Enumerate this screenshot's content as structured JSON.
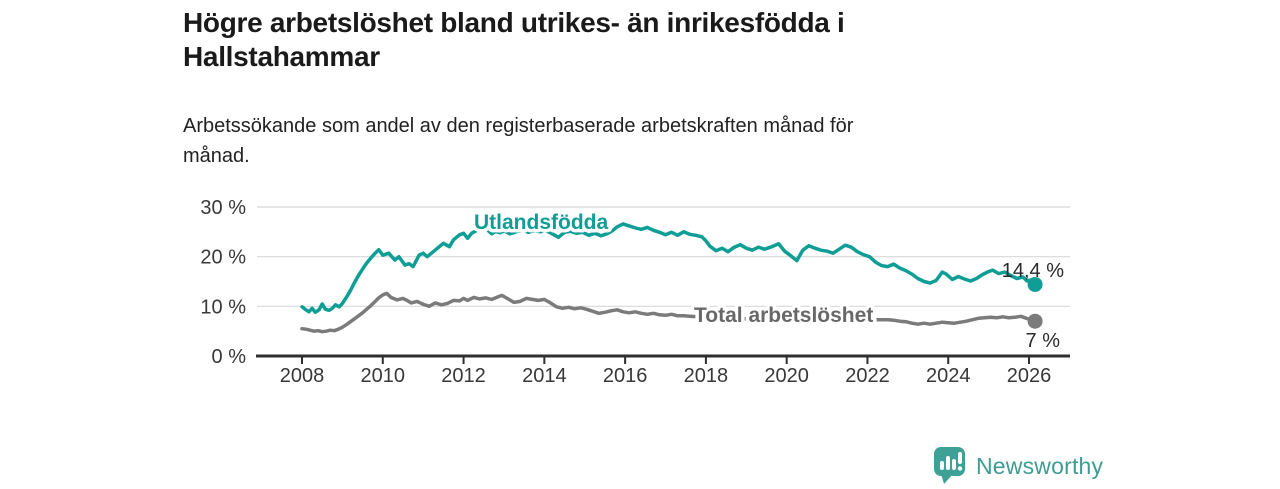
{
  "header": {
    "title_lines": [
      "Högre arbetslöshet bland utrikes- än inrikesfödda i",
      "Hallstahammar"
    ],
    "subtitle_lines": [
      "Arbetssökande som andel av den registerbaserade arbetskraften månad för",
      "månad."
    ]
  },
  "footer": {
    "brand": "Newsworthy",
    "logo_icon": "bar-chart-speech-bubble-icon",
    "brand_color": "#3fa096"
  },
  "chart_data": {
    "type": "line",
    "title": "Högre arbetslöshet bland utrikes- än inrikesfödda i Hallstahammar",
    "subtitle": "Arbetssökande som andel av den registerbaserade arbetskraften månad för månad.",
    "xlabel": "",
    "ylabel": "",
    "xlim": [
      2007,
      2027.2
    ],
    "ylim": [
      0,
      30
    ],
    "grid": "horizontal",
    "legend_position": "inline-labels",
    "x_ticks": [
      {
        "value": 2008,
        "label": "2008"
      },
      {
        "value": 2010,
        "label": "2010"
      },
      {
        "value": 2012,
        "label": "2012"
      },
      {
        "value": 2014,
        "label": "2014"
      },
      {
        "value": 2016,
        "label": "2016"
      },
      {
        "value": 2018,
        "label": "2018"
      },
      {
        "value": 2020,
        "label": "2020"
      },
      {
        "value": 2022,
        "label": "2022"
      },
      {
        "value": 2024,
        "label": "2024"
      },
      {
        "value": 2026,
        "label": "2026"
      }
    ],
    "y_ticks": [
      {
        "value": 0,
        "label": "0 %"
      },
      {
        "value": 10,
        "label": "10 %"
      },
      {
        "value": 20,
        "label": "20 %"
      },
      {
        "value": 30,
        "label": "30 %"
      }
    ],
    "series": [
      {
        "id": "total",
        "name": "Total arbetslöshet",
        "color": "#7b7b7b",
        "label_color": "#686868",
        "end_label": "7 %",
        "end_value": 7.0,
        "points": [
          [
            2008.0,
            5.5
          ],
          [
            2008.1,
            5.4
          ],
          [
            2008.2,
            5.2
          ],
          [
            2008.3,
            5.0
          ],
          [
            2008.4,
            5.1
          ],
          [
            2008.5,
            4.9
          ],
          [
            2008.6,
            5.0
          ],
          [
            2008.7,
            5.2
          ],
          [
            2008.8,
            5.1
          ],
          [
            2008.9,
            5.4
          ],
          [
            2009.0,
            5.8
          ],
          [
            2009.1,
            6.3
          ],
          [
            2009.2,
            6.9
          ],
          [
            2009.3,
            7.5
          ],
          [
            2009.4,
            8.1
          ],
          [
            2009.5,
            8.7
          ],
          [
            2009.6,
            9.4
          ],
          [
            2009.7,
            10.1
          ],
          [
            2009.8,
            10.9
          ],
          [
            2009.9,
            11.7
          ],
          [
            2010.0,
            12.3
          ],
          [
            2010.1,
            12.6
          ],
          [
            2010.2,
            11.8
          ],
          [
            2010.35,
            11.3
          ],
          [
            2010.5,
            11.6
          ],
          [
            2010.6,
            11.2
          ],
          [
            2010.7,
            10.7
          ],
          [
            2010.85,
            11.0
          ],
          [
            2011.0,
            10.4
          ],
          [
            2011.15,
            10.0
          ],
          [
            2011.3,
            10.7
          ],
          [
            2011.45,
            10.3
          ],
          [
            2011.6,
            10.6
          ],
          [
            2011.75,
            11.2
          ],
          [
            2011.9,
            11.1
          ],
          [
            2012.0,
            11.6
          ],
          [
            2012.1,
            11.2
          ],
          [
            2012.25,
            11.8
          ],
          [
            2012.4,
            11.5
          ],
          [
            2012.55,
            11.7
          ],
          [
            2012.7,
            11.4
          ],
          [
            2012.85,
            11.9
          ],
          [
            2012.95,
            12.2
          ],
          [
            2013.1,
            11.5
          ],
          [
            2013.25,
            10.8
          ],
          [
            2013.4,
            11.0
          ],
          [
            2013.55,
            11.6
          ],
          [
            2013.7,
            11.4
          ],
          [
            2013.85,
            11.2
          ],
          [
            2014.0,
            11.4
          ],
          [
            2014.15,
            10.7
          ],
          [
            2014.3,
            9.9
          ],
          [
            2014.45,
            9.6
          ],
          [
            2014.6,
            9.8
          ],
          [
            2014.75,
            9.5
          ],
          [
            2014.9,
            9.7
          ],
          [
            2015.05,
            9.4
          ],
          [
            2015.2,
            9.0
          ],
          [
            2015.35,
            8.6
          ],
          [
            2015.5,
            8.8
          ],
          [
            2015.65,
            9.1
          ],
          [
            2015.8,
            9.3
          ],
          [
            2015.95,
            8.9
          ],
          [
            2016.1,
            8.7
          ],
          [
            2016.25,
            8.9
          ],
          [
            2016.4,
            8.6
          ],
          [
            2016.55,
            8.4
          ],
          [
            2016.7,
            8.6
          ],
          [
            2016.85,
            8.3
          ],
          [
            2017.0,
            8.2
          ],
          [
            2017.15,
            8.4
          ],
          [
            2017.3,
            8.1
          ],
          [
            2017.45,
            8.1
          ],
          [
            2017.6,
            8.0
          ],
          [
            2017.8,
            7.9
          ],
          [
            2018.0,
            7.8
          ],
          [
            2018.25,
            7.7
          ],
          [
            2018.5,
            7.6
          ],
          [
            2018.75,
            7.5
          ],
          [
            2019.0,
            7.5
          ],
          [
            2019.25,
            7.4
          ],
          [
            2019.5,
            7.4
          ],
          [
            2019.75,
            7.5
          ],
          [
            2020.0,
            7.6
          ],
          [
            2020.25,
            7.8
          ],
          [
            2020.5,
            7.7
          ],
          [
            2020.75,
            7.6
          ],
          [
            2021.0,
            7.5
          ],
          [
            2021.25,
            7.4
          ],
          [
            2021.5,
            7.4
          ],
          [
            2021.75,
            7.3
          ],
          [
            2022.0,
            7.3
          ],
          [
            2022.25,
            7.3
          ],
          [
            2022.5,
            7.3
          ],
          [
            2022.65,
            7.2
          ],
          [
            2022.8,
            7.0
          ],
          [
            2022.95,
            6.9
          ],
          [
            2023.1,
            6.6
          ],
          [
            2023.25,
            6.4
          ],
          [
            2023.4,
            6.6
          ],
          [
            2023.55,
            6.4
          ],
          [
            2023.7,
            6.6
          ],
          [
            2023.85,
            6.8
          ],
          [
            2024.0,
            6.7
          ],
          [
            2024.15,
            6.6
          ],
          [
            2024.3,
            6.8
          ],
          [
            2024.45,
            7.0
          ],
          [
            2024.6,
            7.3
          ],
          [
            2024.75,
            7.6
          ],
          [
            2024.9,
            7.7
          ],
          [
            2025.05,
            7.8
          ],
          [
            2025.2,
            7.7
          ],
          [
            2025.35,
            7.9
          ],
          [
            2025.5,
            7.7
          ],
          [
            2025.65,
            7.8
          ],
          [
            2025.8,
            8.0
          ],
          [
            2025.9,
            7.7
          ],
          [
            2026.0,
            7.4
          ],
          [
            2026.15,
            7.0
          ]
        ]
      },
      {
        "id": "utlandsfodda",
        "name": "Utlandsfödda",
        "color": "#0f9e95",
        "label_color": "#0f9e95",
        "end_label": "14,4 %",
        "end_value": 14.4,
        "points": [
          [
            2008.0,
            9.9
          ],
          [
            2008.08,
            9.4
          ],
          [
            2008.17,
            8.9
          ],
          [
            2008.25,
            9.6
          ],
          [
            2008.33,
            8.8
          ],
          [
            2008.42,
            9.3
          ],
          [
            2008.5,
            10.5
          ],
          [
            2008.58,
            9.4
          ],
          [
            2008.67,
            9.2
          ],
          [
            2008.75,
            9.6
          ],
          [
            2008.83,
            10.3
          ],
          [
            2008.92,
            9.9
          ],
          [
            2009.0,
            10.6
          ],
          [
            2009.1,
            11.8
          ],
          [
            2009.2,
            13.2
          ],
          [
            2009.3,
            14.8
          ],
          [
            2009.4,
            16.2
          ],
          [
            2009.5,
            17.5
          ],
          [
            2009.6,
            18.7
          ],
          [
            2009.7,
            19.7
          ],
          [
            2009.8,
            20.6
          ],
          [
            2009.9,
            21.4
          ],
          [
            2010.0,
            20.3
          ],
          [
            2010.15,
            20.7
          ],
          [
            2010.3,
            19.3
          ],
          [
            2010.4,
            20.0
          ],
          [
            2010.55,
            18.3
          ],
          [
            2010.65,
            18.6
          ],
          [
            2010.75,
            18.0
          ],
          [
            2010.9,
            20.3
          ],
          [
            2011.0,
            20.7
          ],
          [
            2011.1,
            20.0
          ],
          [
            2011.25,
            21.0
          ],
          [
            2011.4,
            22.0
          ],
          [
            2011.5,
            22.7
          ],
          [
            2011.65,
            22.0
          ],
          [
            2011.75,
            23.4
          ],
          [
            2011.9,
            24.4
          ],
          [
            2012.0,
            24.7
          ],
          [
            2012.1,
            23.7
          ],
          [
            2012.2,
            24.7
          ],
          [
            2012.35,
            25.4
          ],
          [
            2012.5,
            26.0
          ],
          [
            2012.6,
            25.3
          ],
          [
            2012.7,
            24.6
          ],
          [
            2012.8,
            25.1
          ],
          [
            2012.9,
            24.8
          ],
          [
            2013.0,
            25.2
          ],
          [
            2013.15,
            24.6
          ],
          [
            2013.3,
            25.0
          ],
          [
            2013.45,
            25.4
          ],
          [
            2013.6,
            24.9
          ],
          [
            2013.75,
            25.2
          ],
          [
            2013.9,
            25.0
          ],
          [
            2014.0,
            25.3
          ],
          [
            2014.15,
            24.8
          ],
          [
            2014.35,
            23.9
          ],
          [
            2014.5,
            24.9
          ],
          [
            2014.65,
            25.1
          ],
          [
            2014.8,
            24.7
          ],
          [
            2014.95,
            24.9
          ],
          [
            2015.1,
            24.3
          ],
          [
            2015.25,
            24.7
          ],
          [
            2015.4,
            24.2
          ],
          [
            2015.55,
            24.6
          ],
          [
            2015.7,
            25.3
          ],
          [
            2015.8,
            26.0
          ],
          [
            2015.95,
            26.6
          ],
          [
            2016.1,
            26.2
          ],
          [
            2016.25,
            25.8
          ],
          [
            2016.4,
            25.5
          ],
          [
            2016.55,
            25.9
          ],
          [
            2016.7,
            25.3
          ],
          [
            2016.85,
            24.9
          ],
          [
            2017.0,
            24.4
          ],
          [
            2017.15,
            24.9
          ],
          [
            2017.3,
            24.3
          ],
          [
            2017.45,
            25.0
          ],
          [
            2017.6,
            24.5
          ],
          [
            2017.75,
            24.3
          ],
          [
            2017.9,
            24.0
          ],
          [
            2018.0,
            23.2
          ],
          [
            2018.1,
            22.1
          ],
          [
            2018.25,
            21.2
          ],
          [
            2018.4,
            21.7
          ],
          [
            2018.55,
            21.0
          ],
          [
            2018.7,
            21.9
          ],
          [
            2018.85,
            22.4
          ],
          [
            2019.0,
            21.7
          ],
          [
            2019.15,
            21.3
          ],
          [
            2019.3,
            21.9
          ],
          [
            2019.45,
            21.5
          ],
          [
            2019.6,
            21.9
          ],
          [
            2019.8,
            22.6
          ],
          [
            2019.95,
            21.1
          ],
          [
            2020.1,
            20.2
          ],
          [
            2020.25,
            19.2
          ],
          [
            2020.4,
            21.3
          ],
          [
            2020.55,
            22.2
          ],
          [
            2020.7,
            21.7
          ],
          [
            2020.85,
            21.3
          ],
          [
            2021.0,
            21.1
          ],
          [
            2021.15,
            20.7
          ],
          [
            2021.3,
            21.5
          ],
          [
            2021.45,
            22.3
          ],
          [
            2021.6,
            21.9
          ],
          [
            2021.75,
            21.0
          ],
          [
            2021.9,
            20.4
          ],
          [
            2022.05,
            20.0
          ],
          [
            2022.2,
            18.9
          ],
          [
            2022.35,
            18.2
          ],
          [
            2022.5,
            18.0
          ],
          [
            2022.65,
            18.5
          ],
          [
            2022.8,
            17.7
          ],
          [
            2022.95,
            17.2
          ],
          [
            2023.1,
            16.5
          ],
          [
            2023.25,
            15.6
          ],
          [
            2023.4,
            15.0
          ],
          [
            2023.55,
            14.7
          ],
          [
            2023.7,
            15.2
          ],
          [
            2023.85,
            16.9
          ],
          [
            2023.95,
            16.5
          ],
          [
            2024.1,
            15.4
          ],
          [
            2024.25,
            16.0
          ],
          [
            2024.4,
            15.5
          ],
          [
            2024.55,
            15.1
          ],
          [
            2024.7,
            15.6
          ],
          [
            2024.85,
            16.4
          ],
          [
            2025.0,
            17.0
          ],
          [
            2025.1,
            17.3
          ],
          [
            2025.25,
            16.6
          ],
          [
            2025.4,
            16.9
          ],
          [
            2025.55,
            16.2
          ],
          [
            2025.7,
            15.6
          ],
          [
            2025.85,
            15.9
          ],
          [
            2025.95,
            15.1
          ],
          [
            2026.05,
            15.3
          ],
          [
            2026.15,
            14.4
          ]
        ]
      }
    ]
  }
}
